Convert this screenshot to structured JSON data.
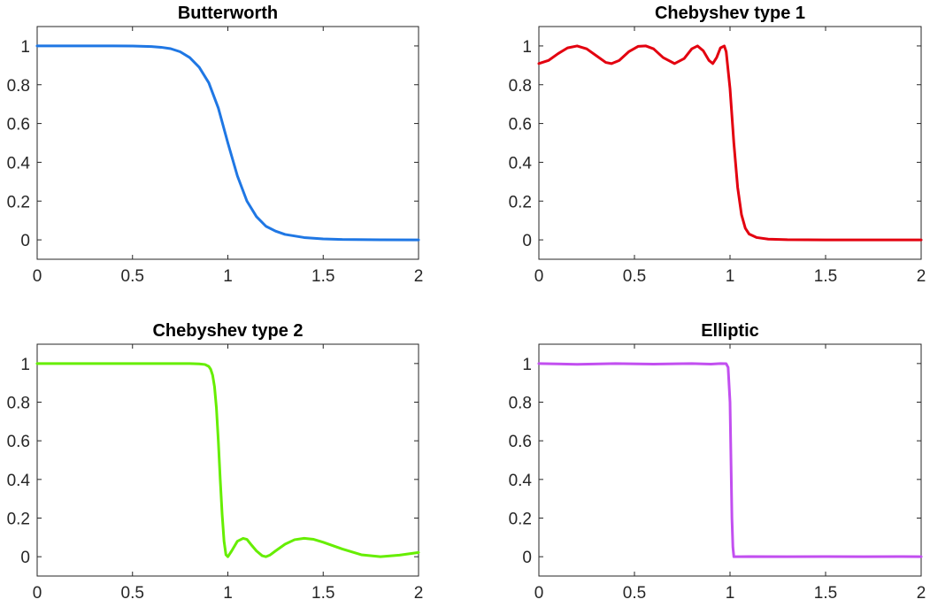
{
  "chart_data": [
    {
      "type": "line",
      "title": "Butterworth",
      "xlabel": "",
      "ylabel": "",
      "xlim": [
        0,
        2
      ],
      "ylim": [
        -0.1,
        1.1
      ],
      "xticks": [
        0,
        0.5,
        1,
        1.5,
        2
      ],
      "xtick_labels": [
        "0",
        "0.5",
        "1",
        "1.5",
        "2"
      ],
      "yticks": [
        0,
        0.2,
        0.4,
        0.6,
        0.8,
        1
      ],
      "ytick_labels": [
        "0",
        "0.2",
        "0.4",
        "0.6",
        "0.8",
        "1"
      ],
      "grid": false,
      "series": [
        {
          "color": "#1f77e4",
          "x": [
            0,
            0.2,
            0.4,
            0.5,
            0.6,
            0.65,
            0.7,
            0.75,
            0.8,
            0.85,
            0.9,
            0.95,
            1.0,
            1.05,
            1.1,
            1.15,
            1.2,
            1.25,
            1.3,
            1.4,
            1.5,
            1.6,
            1.8,
            2.0
          ],
          "y": [
            1,
            1,
            1,
            0.9995,
            0.997,
            0.993,
            0.986,
            0.97,
            0.94,
            0.89,
            0.81,
            0.68,
            0.5,
            0.33,
            0.2,
            0.12,
            0.07,
            0.045,
            0.028,
            0.012,
            0.005,
            0.002,
            0.0005,
            0
          ]
        }
      ]
    },
    {
      "type": "line",
      "title": "Chebyshev type 1",
      "xlabel": "",
      "ylabel": "",
      "xlim": [
        0,
        2
      ],
      "ylim": [
        -0.1,
        1.1
      ],
      "xticks": [
        0,
        0.5,
        1,
        1.5,
        2
      ],
      "xtick_labels": [
        "0",
        "0.5",
        "1",
        "1.5",
        "2"
      ],
      "yticks": [
        0,
        0.2,
        0.4,
        0.6,
        0.8,
        1
      ],
      "ytick_labels": [
        "0",
        "0.2",
        "0.4",
        "0.6",
        "0.8",
        "1"
      ],
      "grid": false,
      "series": [
        {
          "color": "#e3000f",
          "x": [
            0,
            0.05,
            0.1,
            0.15,
            0.2,
            0.25,
            0.3,
            0.35,
            0.38,
            0.42,
            0.47,
            0.52,
            0.56,
            0.6,
            0.65,
            0.71,
            0.76,
            0.8,
            0.83,
            0.86,
            0.89,
            0.91,
            0.93,
            0.95,
            0.97,
            0.98,
            1.0,
            1.02,
            1.04,
            1.06,
            1.08,
            1.1,
            1.14,
            1.2,
            1.3,
            1.5,
            2.0
          ],
          "y": [
            0.909,
            0.925,
            0.96,
            0.99,
            1.0,
            0.985,
            0.95,
            0.915,
            0.909,
            0.925,
            0.97,
            0.998,
            1.0,
            0.985,
            0.94,
            0.909,
            0.935,
            0.985,
            1.0,
            0.975,
            0.925,
            0.909,
            0.94,
            0.99,
            1.0,
            0.97,
            0.78,
            0.5,
            0.27,
            0.13,
            0.06,
            0.03,
            0.012,
            0.004,
            0.001,
            0,
            0
          ]
        }
      ]
    },
    {
      "type": "line",
      "title": "Chebyshev type 2",
      "xlabel": "",
      "ylabel": "",
      "xlim": [
        0,
        2
      ],
      "ylim": [
        -0.1,
        1.1
      ],
      "xticks": [
        0,
        0.5,
        1,
        1.5,
        2
      ],
      "xtick_labels": [
        "0",
        "0.5",
        "1",
        "1.5",
        "2"
      ],
      "yticks": [
        0,
        0.2,
        0.4,
        0.6,
        0.8,
        1
      ],
      "ytick_labels": [
        "0",
        "0.2",
        "0.4",
        "0.6",
        "0.8",
        "1"
      ],
      "grid": false,
      "series": [
        {
          "color": "#66ee00",
          "x": [
            0,
            0.3,
            0.6,
            0.8,
            0.85,
            0.88,
            0.9,
            0.91,
            0.92,
            0.93,
            0.94,
            0.95,
            0.96,
            0.97,
            0.98,
            0.99,
            1.0,
            1.02,
            1.05,
            1.08,
            1.1,
            1.12,
            1.15,
            1.18,
            1.2,
            1.22,
            1.25,
            1.3,
            1.35,
            1.4,
            1.45,
            1.5,
            1.6,
            1.7,
            1.8,
            1.9,
            2.0
          ],
          "y": [
            1,
            1,
            1,
            1,
            0.998,
            0.995,
            0.985,
            0.97,
            0.94,
            0.88,
            0.77,
            0.6,
            0.4,
            0.22,
            0.08,
            0.01,
            0.0,
            0.03,
            0.08,
            0.095,
            0.09,
            0.065,
            0.03,
            0.005,
            0.0,
            0.008,
            0.03,
            0.065,
            0.088,
            0.095,
            0.09,
            0.075,
            0.04,
            0.01,
            0.0,
            0.008,
            0.022
          ]
        }
      ]
    },
    {
      "type": "line",
      "title": "Elliptic",
      "xlabel": "",
      "ylabel": "",
      "xlim": [
        0,
        2
      ],
      "ylim": [
        -0.1,
        1.1
      ],
      "xticks": [
        0,
        0.5,
        1,
        1.5,
        2
      ],
      "xtick_labels": [
        "0",
        "0.5",
        "1",
        "1.5",
        "2"
      ],
      "yticks": [
        0,
        0.2,
        0.4,
        0.6,
        0.8,
        1
      ],
      "ytick_labels": [
        "0",
        "0.2",
        "0.4",
        "0.6",
        "0.8",
        "1"
      ],
      "grid": false,
      "series": [
        {
          "color": "#c24ff0",
          "x": [
            0,
            0.2,
            0.4,
            0.6,
            0.8,
            0.9,
            0.95,
            0.98,
            0.99,
            1.0,
            1.005,
            1.01,
            1.015,
            1.02,
            1.03,
            1.05,
            1.1,
            1.3,
            1.5,
            1.7,
            1.9,
            2.0
          ],
          "y": [
            1,
            0.996,
            1,
            0.997,
            1,
            0.997,
            1,
            0.999,
            0.98,
            0.8,
            0.5,
            0.2,
            0.05,
            0.0,
            0.0,
            0.0,
            0.001,
            0.0,
            0.001,
            0.0,
            0.001,
            0.0
          ]
        }
      ]
    }
  ]
}
